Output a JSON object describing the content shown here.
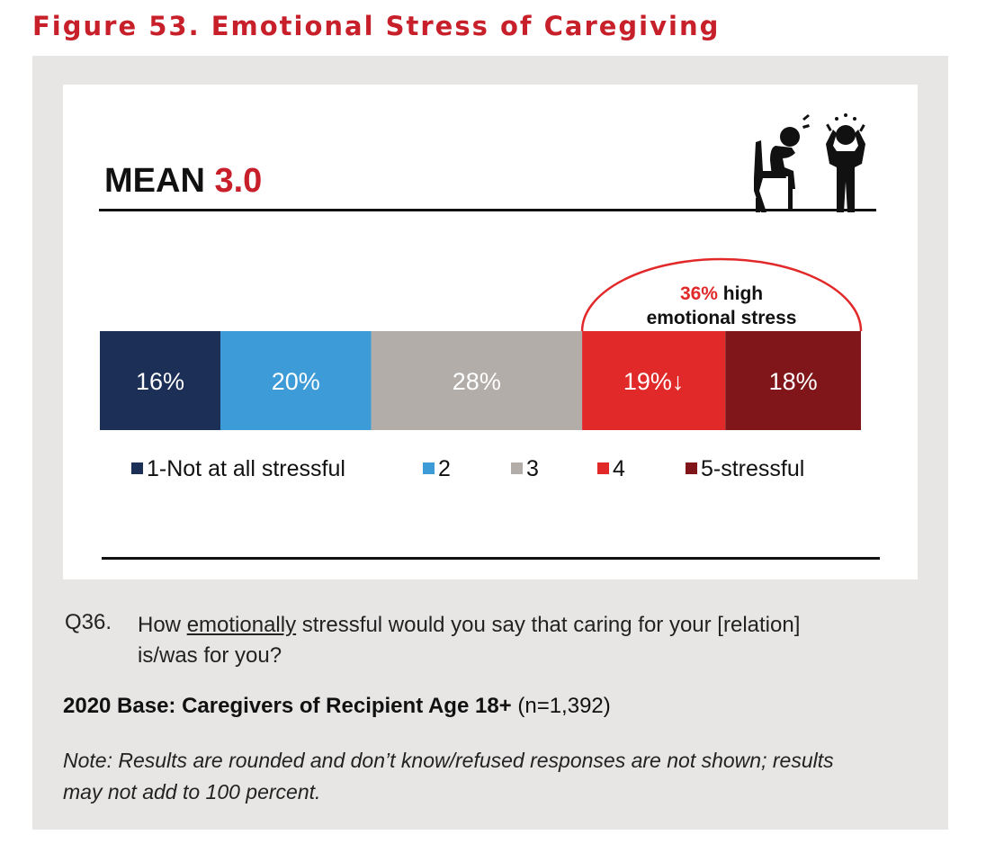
{
  "figure": {
    "title": "Figure 53. Emotional Stress of Caregiving"
  },
  "mean": {
    "label": "MEAN",
    "value": "3.0"
  },
  "highlight": {
    "pct": "36%",
    "line1_rest": " high",
    "line2": "emotional stress"
  },
  "question": {
    "number": "Q36.",
    "before": "How ",
    "underlined": "emotionally",
    "after": " stressful would you say that caring for your [relation] is/was for you?"
  },
  "base": {
    "bold": "2020 Base: Caregivers of Recipient Age 18+",
    "n": " (n=1,392)"
  },
  "note": "Note: Results are rounded and don’t know/refused responses are not shown; results may not add to 100 percent.",
  "chart_data": {
    "type": "bar",
    "orientation": "horizontal-stacked",
    "title": "",
    "xlabel": "",
    "ylabel": "",
    "xlim": [
      0,
      100
    ],
    "categories": [
      "1-Not at all stressful",
      "2",
      "3",
      "4",
      "5-stressful"
    ],
    "values": [
      16,
      20,
      28,
      19,
      18
    ],
    "labels": [
      "16%",
      "20%",
      "28%",
      "19%↓",
      "18%"
    ],
    "colors": [
      "#1c2f57",
      "#3d9bd8",
      "#b3ada9",
      "#e2292a",
      "#801619"
    ],
    "label_colors": [
      "#ffffff",
      "#ffffff",
      "#ffffff",
      "#ffffff",
      "#ffffff"
    ],
    "legend_position": "bottom",
    "annotation": "36% high emotional stress"
  }
}
